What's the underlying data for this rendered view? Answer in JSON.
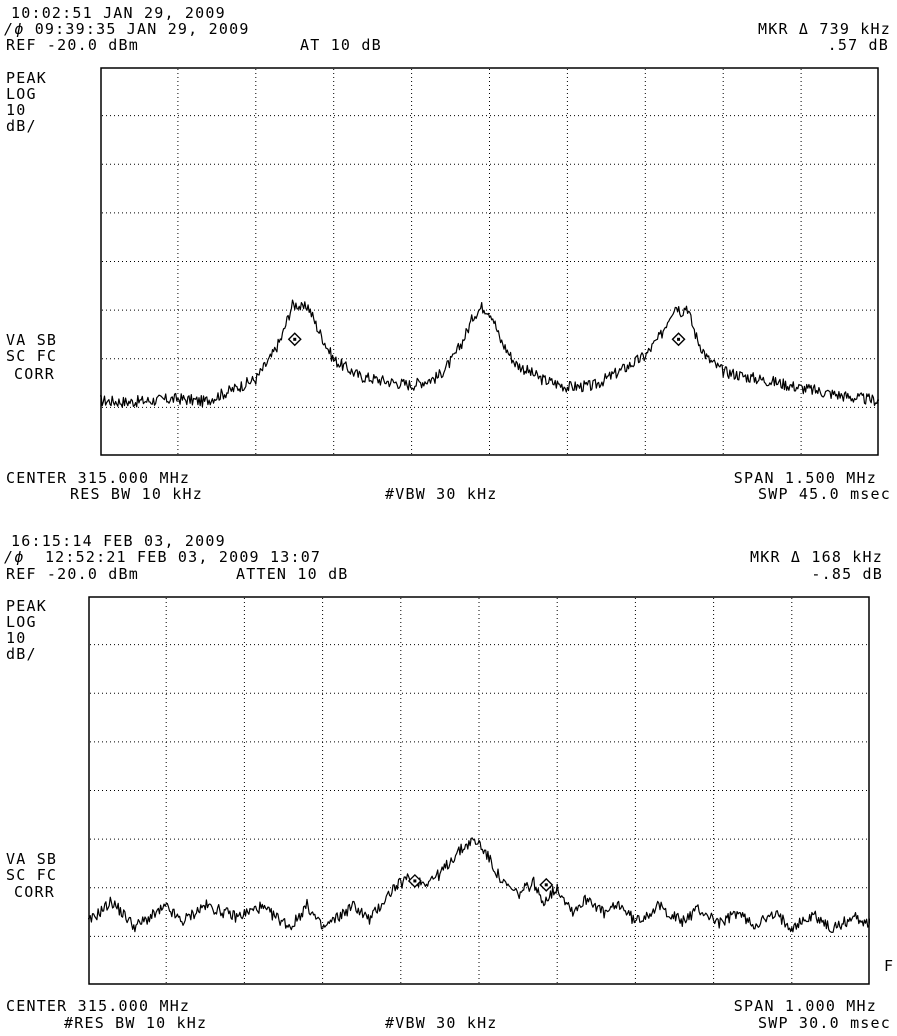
{
  "panels": [
    {
      "datetime": "10:02:51 JAN 29, 2009",
      "ref_datetime": "09:39:35 JAN 29, 2009",
      "ref_level": "REF -20.0 dBm",
      "atten": "AT 10 dB",
      "marker_freq": "MKR Δ 739 kHz",
      "marker_amp": ".57 dB",
      "detector": [
        "PEAK",
        "LOG",
        "10",
        "dB/"
      ],
      "side_labels": [
        "VA SB",
        "SC FC",
        "CORR"
      ],
      "center": "CENTER 315.000 MHz",
      "span": "SPAN 1.500 MHz",
      "rbw": "RES BW 10 kHz",
      "vbw": "#VBW 30 kHz",
      "sweep": "SWP 45.0 msec",
      "extra_note": ""
    },
    {
      "datetime": "16:15:14 FEB 03, 2009",
      "ref_datetime": "12:52:21 FEB 03, 2009 13:07",
      "ref_level": "REF -20.0 dBm",
      "atten": "ATTEN 10 dB",
      "marker_freq": "MKR Δ 168 kHz",
      "marker_amp": "-.85 dB",
      "detector": [
        "PEAK",
        "LOG",
        "10",
        "dB/"
      ],
      "side_labels": [
        "VA SB",
        "SC FC",
        "CORR"
      ],
      "center": "CENTER 315.000 MHz",
      "span": "SPAN 1.000 MHz",
      "rbw": "#RES BW 10 kHz",
      "vbw": "#VBW 30 kHz",
      "sweep": "SWP 30.0 msec",
      "extra_note": "F"
    }
  ],
  "chart_data": [
    {
      "type": "line",
      "x": [
        314.25,
        314.3,
        314.35,
        314.4,
        314.45,
        314.5,
        314.55,
        314.58,
        314.6,
        314.61,
        314.62,
        314.63,
        314.64,
        314.65,
        314.67,
        314.7,
        314.75,
        314.8,
        314.85,
        314.9,
        314.93,
        314.95,
        314.97,
        314.985,
        314.995,
        315.005,
        315.02,
        315.05,
        315.1,
        315.15,
        315.2,
        315.25,
        315.3,
        315.33,
        315.35,
        315.36,
        315.37,
        315.38,
        315.39,
        315.4,
        315.42,
        315.45,
        315.5,
        315.55,
        315.6,
        315.65,
        315.7,
        315.75
      ],
      "series": [
        {
          "values": [
            -88.6,
            -88.9,
            -88.6,
            -88.2,
            -88.8,
            -86.6,
            -84.2,
            -79.6,
            -75.6,
            -72.2,
            -69.0,
            -68.8,
            -69.8,
            -69.0,
            -74.0,
            -80.2,
            -83.6,
            -84.6,
            -85.4,
            -83.8,
            -80.0,
            -76.0,
            -71.0,
            -69.4,
            -69.8,
            -71.0,
            -76.0,
            -81.0,
            -84.2,
            -85.8,
            -85.6,
            -82.6,
            -79.4,
            -75.2,
            -70.4,
            -69.0,
            -70.4,
            -69.0,
            -72.8,
            -76.0,
            -80.0,
            -82.6,
            -83.8,
            -84.8,
            -86.0,
            -87.0,
            -88.0,
            -88.6
          ]
        }
      ],
      "markers": [
        {
          "x": 314.625,
          "y": -76.0
        },
        {
          "x": 315.364,
          "y": -76.0
        }
      ],
      "xlim": [
        314.25,
        315.75
      ],
      "ylim": [
        -100,
        -20
      ],
      "grid": true
    },
    {
      "type": "line",
      "x": [
        314.5,
        314.53,
        314.56,
        314.6,
        314.62,
        314.65,
        314.69,
        314.72,
        314.76,
        314.78,
        314.8,
        314.84,
        314.86,
        314.89,
        314.91,
        314.93,
        314.95,
        314.97,
        314.99,
        315.0,
        315.01,
        315.03,
        315.05,
        315.07,
        315.08,
        315.1,
        315.12,
        315.14,
        315.16,
        315.18,
        315.2,
        315.23,
        315.26,
        315.28,
        315.31,
        315.33,
        315.35,
        315.38,
        315.4,
        315.43,
        315.45,
        315.48,
        315.5
      ],
      "series": [
        {
          "values": [
            -87.2,
            -82.8,
            -88.0,
            -84.0,
            -87.0,
            -83.6,
            -86.0,
            -84.0,
            -88.0,
            -83.6,
            -88.4,
            -83.6,
            -86.6,
            -80.2,
            -78.0,
            -79.0,
            -77.2,
            -73.2,
            -70.4,
            -70.8,
            -73.2,
            -79.0,
            -81.4,
            -78.8,
            -83.0,
            -80.0,
            -84.8,
            -82.0,
            -85.4,
            -83.4,
            -87.0,
            -83.8,
            -87.0,
            -84.4,
            -87.4,
            -85.0,
            -87.6,
            -85.6,
            -88.0,
            -85.6,
            -88.6,
            -86.0,
            -87.4
          ]
        }
      ],
      "markers": [
        {
          "x": 314.918,
          "y": -78.6
        },
        {
          "x": 315.086,
          "y": -79.4
        }
      ],
      "xlim": [
        314.5,
        315.5
      ],
      "ylim": [
        -100,
        -20
      ],
      "grid": true
    }
  ]
}
